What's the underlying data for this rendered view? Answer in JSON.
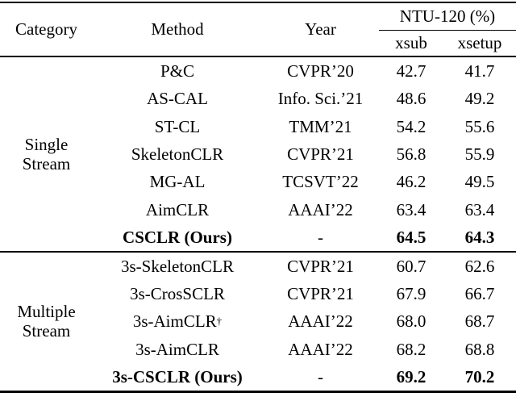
{
  "table": {
    "headers": {
      "category": "Category",
      "method": "Method",
      "year": "Year",
      "group": "NTU-120 (%)",
      "xsub": "xsub",
      "xsetup": "xsetup"
    },
    "sections": [
      {
        "category_lines": [
          "Single",
          "Stream"
        ],
        "rows": [
          {
            "method": "P&C",
            "year": "CVPR’20",
            "xsub": "42.7",
            "xsetup": "41.7",
            "bold": false
          },
          {
            "method": "AS-CAL",
            "year": "Info. Sci.’21",
            "xsub": "48.6",
            "xsetup": "49.2",
            "bold": false
          },
          {
            "method": "ST-CL",
            "year": "TMM’21",
            "xsub": "54.2",
            "xsetup": "55.6",
            "bold": false
          },
          {
            "method": "SkeletonCLR",
            "year": "CVPR’21",
            "xsub": "56.8",
            "xsetup": "55.9",
            "bold": false
          },
          {
            "method": "MG-AL",
            "year": "TCSVT’22",
            "xsub": "46.2",
            "xsetup": "49.5",
            "bold": false
          },
          {
            "method": "AimCLR",
            "year": "AAAI’22",
            "xsub": "63.4",
            "xsetup": "63.4",
            "bold": false
          },
          {
            "method": "CSCLR (Ours)",
            "year": "-",
            "xsub": "64.5",
            "xsetup": "64.3",
            "bold": true
          }
        ]
      },
      {
        "category_lines": [
          "Multiple",
          "Stream"
        ],
        "rows": [
          {
            "method": "3s-SkeletonCLR",
            "year": "CVPR’21",
            "xsub": "60.7",
            "xsetup": "62.6",
            "bold": false
          },
          {
            "method": "3s-CrosSCLR",
            "year": "CVPR’21",
            "xsub": "67.9",
            "xsetup": "66.7",
            "bold": false
          },
          {
            "method": "3s-AimCLR",
            "method_sup": "†",
            "year": "AAAI’22",
            "xsub": "68.0",
            "xsetup": "68.7",
            "bold": false
          },
          {
            "method": "3s-AimCLR",
            "year": "AAAI’22",
            "xsub": "68.2",
            "xsetup": "68.8",
            "bold": false
          },
          {
            "method": "3s-CSCLR (Ours)",
            "year": "-",
            "xsub": "69.2",
            "xsetup": "70.2",
            "bold": true
          }
        ]
      }
    ]
  }
}
